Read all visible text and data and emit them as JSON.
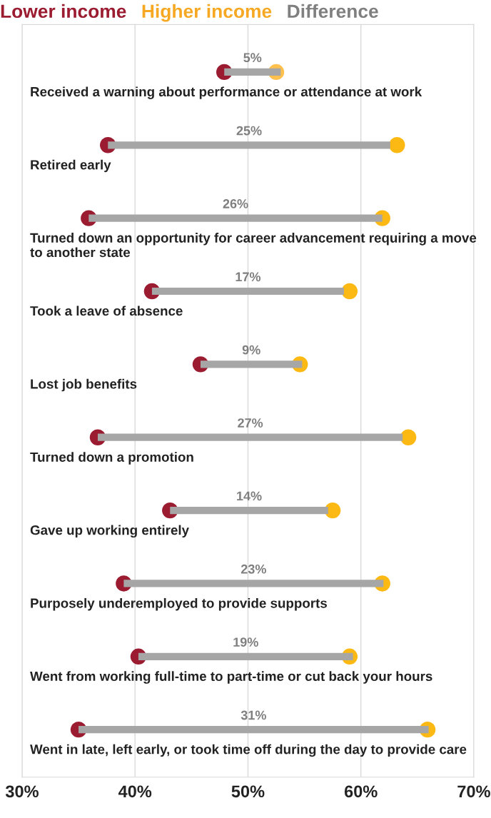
{
  "chart_data": {
    "type": "scatter",
    "orientation": "horizontal",
    "legend": "top",
    "grid": "x",
    "marker": "circle",
    "categories": [
      "Received a warning about performance or attendance at work",
      "Retired early",
      "Turned down an opportunity for career advancement requiring a move to another state",
      "Took a leave of absence",
      "Lost job benefits",
      "Turned down a promotion",
      "Gave up working entirely",
      "Purposely underemployed to provide supports",
      "Went from working full-time to part-time or cut back your hours",
      "Went in late, left early, or took time off during the day to provide care"
    ],
    "xlim": [
      30,
      70
    ],
    "xticks": [
      {
        "value": 30,
        "label": "30%"
      },
      {
        "value": 40,
        "label": "40%"
      },
      {
        "value": 50,
        "label": "50%"
      },
      {
        "value": 60,
        "label": "60%"
      },
      {
        "value": 70,
        "label": "70%"
      }
    ],
    "series": [
      {
        "name": "Lower income",
        "color": "#9b1b30",
        "values": [
          47.9,
          37.6,
          35.9,
          41.5,
          45.8,
          36.7,
          43.1,
          39.0,
          40.3,
          35.0
        ]
      },
      {
        "name": "Higher income",
        "color": "#f7a823",
        "colors": [
          "#ffc04d",
          "#fdb913",
          "#fdb913",
          "#fdb913",
          "#fdb913",
          "#fdb913",
          "#fdb913",
          "#fdb913",
          "#fdb913",
          "#fdb913"
        ],
        "values": [
          52.5,
          63.2,
          61.9,
          59.0,
          54.6,
          64.2,
          57.5,
          61.9,
          59.0,
          65.9
        ]
      },
      {
        "name": "Difference",
        "type": "bar",
        "color": "#a6a6a6",
        "base": [
          47.9,
          37.6,
          35.9,
          41.5,
          45.8,
          36.7,
          43.1,
          39.0,
          40.3,
          35.0
        ],
        "values": [
          5,
          25,
          26,
          17,
          9,
          27,
          14,
          23,
          19,
          31
        ],
        "value_labels": [
          "5%",
          "25%",
          "26%",
          "17%",
          "9%",
          "27%",
          "14%",
          "23%",
          "19%",
          "31%"
        ]
      }
    ]
  }
}
